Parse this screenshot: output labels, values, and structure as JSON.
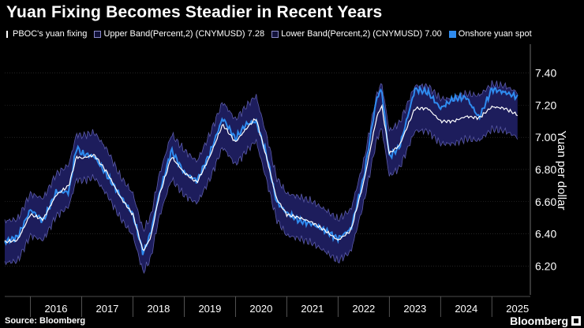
{
  "title": "Yuan Fixing Becomes Steadier in Recent Years",
  "source": "Source: Bloomberg",
  "brand": "Bloomberg",
  "legend": {
    "fixing": "PBOC's yuan fixing",
    "upper": "Upper Band(Percent,2) (CNYMUSD) 7.28",
    "lower": "Lower Band(Percent,2) (CNYMUSD) 7.00",
    "spot": "Onshore yuan spot"
  },
  "colors": {
    "background": "#000000",
    "band_fill": "#1d1d5c",
    "band_edge": "#5a5aa8",
    "spot": "#2f8cf0",
    "fixing": "#ffffff",
    "grid": "#3a3a3a"
  },
  "chart_data": {
    "type": "line",
    "xlabel": "",
    "ylabel": "Yuan per dollar",
    "xlim": [
      2015.5,
      2025.75
    ],
    "ylim": [
      6.03,
      7.55
    ],
    "x_ticks": [
      2016,
      2017,
      2018,
      2019,
      2020,
      2021,
      2022,
      2023,
      2024,
      2025
    ],
    "y_ticks": [
      6.2,
      6.4,
      6.6,
      6.8,
      7.0,
      7.2,
      7.4
    ],
    "y_tick_labels": [
      "6.20",
      "6.40",
      "6.60",
      "6.80",
      "7.00",
      "7.20",
      "7.40"
    ],
    "grid": "horizontal",
    "legend_position": "top",
    "band_pct": 2,
    "x": [
      2015.5,
      2015.75,
      2016.0,
      2016.25,
      2016.5,
      2016.75,
      2016.9,
      2017.0,
      2017.25,
      2017.5,
      2017.75,
      2018.0,
      2018.2,
      2018.35,
      2018.5,
      2018.75,
      2019.0,
      2019.25,
      2019.5,
      2019.75,
      2020.0,
      2020.2,
      2020.4,
      2020.6,
      2020.8,
      2021.0,
      2021.25,
      2021.5,
      2021.75,
      2022.0,
      2022.25,
      2022.5,
      2022.75,
      2022.85,
      2023.0,
      2023.2,
      2023.5,
      2023.75,
      2024.0,
      2024.25,
      2024.5,
      2024.75,
      2025.0,
      2025.25,
      2025.5
    ],
    "series": [
      {
        "name": "PBOC's yuan fixing",
        "values": [
          6.35,
          6.36,
          6.52,
          6.49,
          6.64,
          6.7,
          6.88,
          6.87,
          6.89,
          6.78,
          6.63,
          6.52,
          6.29,
          6.38,
          6.62,
          6.88,
          6.78,
          6.72,
          6.88,
          7.08,
          6.97,
          7.05,
          7.12,
          6.88,
          6.62,
          6.52,
          6.5,
          6.47,
          6.42,
          6.36,
          6.42,
          6.72,
          7.12,
          7.2,
          6.9,
          6.95,
          7.18,
          7.18,
          7.1,
          7.1,
          7.13,
          7.12,
          7.19,
          7.18,
          7.14
        ]
      },
      {
        "name": "Upper Band(Percent,2) (CNYMUSD) 7.28",
        "values": [
          6.48,
          6.49,
          6.65,
          6.62,
          6.77,
          6.83,
          7.02,
          7.01,
          7.03,
          6.92,
          6.76,
          6.65,
          6.42,
          6.51,
          6.75,
          7.02,
          6.92,
          6.85,
          7.02,
          7.22,
          7.11,
          7.19,
          7.26,
          7.02,
          6.75,
          6.65,
          6.63,
          6.6,
          6.55,
          6.49,
          6.55,
          6.85,
          7.26,
          7.34,
          7.04,
          7.09,
          7.32,
          7.32,
          7.24,
          7.24,
          7.27,
          7.26,
          7.33,
          7.32,
          7.28
        ]
      },
      {
        "name": "Lower Band(Percent,2) (CNYMUSD) 7.00",
        "values": [
          6.22,
          6.23,
          6.39,
          6.36,
          6.51,
          6.57,
          6.74,
          6.73,
          6.75,
          6.64,
          6.5,
          6.39,
          6.16,
          6.25,
          6.49,
          6.74,
          6.64,
          6.59,
          6.74,
          6.94,
          6.83,
          6.91,
          6.98,
          6.74,
          6.49,
          6.39,
          6.37,
          6.34,
          6.29,
          6.23,
          6.29,
          6.59,
          6.98,
          7.06,
          6.76,
          6.81,
          7.04,
          7.04,
          6.96,
          6.96,
          6.99,
          6.98,
          7.05,
          7.04,
          7.0
        ]
      },
      {
        "name": "Onshore yuan spot",
        "values": [
          6.35,
          6.38,
          6.55,
          6.48,
          6.66,
          6.66,
          6.94,
          6.9,
          6.88,
          6.76,
          6.64,
          6.52,
          6.28,
          6.41,
          6.63,
          6.92,
          6.78,
          6.73,
          6.9,
          7.12,
          6.99,
          7.08,
          7.1,
          6.9,
          6.6,
          6.53,
          6.48,
          6.46,
          6.42,
          6.37,
          6.43,
          6.75,
          7.24,
          7.3,
          6.88,
          6.94,
          7.3,
          7.28,
          7.18,
          7.24,
          7.25,
          7.12,
          7.3,
          7.28,
          7.25
        ]
      }
    ]
  }
}
